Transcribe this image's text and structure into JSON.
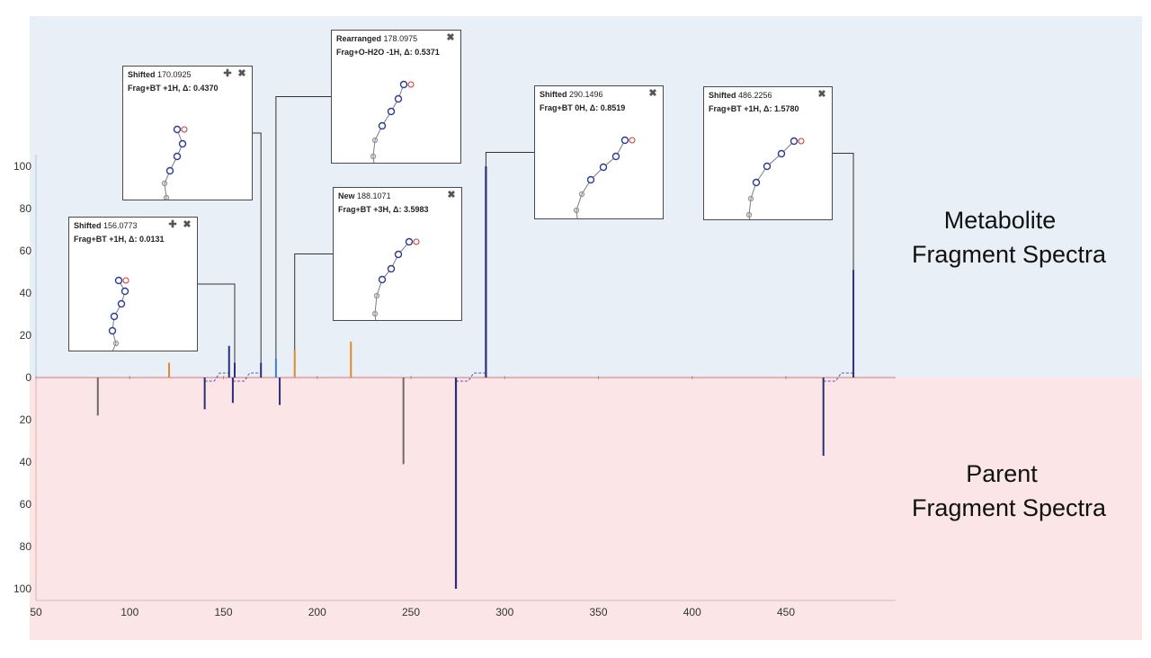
{
  "labels": {
    "metabolite_line1": "Metabolite",
    "metabolite_line2": "Fragment Spectra",
    "parent_line1": "Parent",
    "parent_line2": "Fragment Spectra"
  },
  "colors": {
    "metabolite_bg": "#e9eff7",
    "parent_bg": "#fbe5e6",
    "baseline": "#d9a0a0",
    "navy": "#2b2f7a",
    "blue": "#3b7fc4",
    "orange": "#e08a2a",
    "gray": "#6e6a6a",
    "dashed": "#5a5aa8"
  },
  "callouts": [
    {
      "id": "c1",
      "type": "Shifted",
      "mz": "156.0773",
      "desc": "Frag+BT +1H, Δ: 0.0131",
      "has_plus": true
    },
    {
      "id": "c2",
      "type": "Shifted",
      "mz": "170.0925",
      "desc": "Frag+BT +1H, Δ: 0.4370",
      "has_plus": true
    },
    {
      "id": "c3",
      "type": "Rearranged",
      "mz": "178.0975",
      "desc": "Frag+O-H2O -1H, Δ: 0.5371",
      "has_plus": false
    },
    {
      "id": "c4",
      "type": "New",
      "mz": "188.1071",
      "desc": "Frag+BT +3H, Δ: 3.5983",
      "has_plus": false
    },
    {
      "id": "c5",
      "type": "Shifted",
      "mz": "290.1496",
      "desc": "Frag+BT 0H, Δ: 0.8519",
      "has_plus": false
    },
    {
      "id": "c6",
      "type": "Shifted",
      "mz": "486.2256",
      "desc": "Frag+BT +1H, Δ: 1.5780",
      "has_plus": false
    }
  ],
  "chart_data": {
    "type": "bar",
    "x_ticks": [
      50,
      100,
      150,
      200,
      250,
      300,
      350,
      400,
      450
    ],
    "y_ticks_top": [
      100,
      80,
      60,
      40,
      20,
      0
    ],
    "y_ticks_bottom": [
      20,
      40,
      60,
      80,
      100
    ],
    "xlim": [
      50,
      495
    ],
    "ylim": [
      -100,
      100
    ],
    "grid": false,
    "series": [
      {
        "panel": "metabolite",
        "peaks": [
          {
            "x": 121,
            "y": 7,
            "color": "orange"
          },
          {
            "x": 153,
            "y": 15,
            "color": "navy"
          },
          {
            "x": 156,
            "y": 7,
            "color": "navy"
          },
          {
            "x": 170,
            "y": 7,
            "color": "navy"
          },
          {
            "x": 178,
            "y": 9,
            "color": "blue"
          },
          {
            "x": 188,
            "y": 13,
            "color": "orange"
          },
          {
            "x": 218,
            "y": 17,
            "color": "orange"
          },
          {
            "x": 290,
            "y": 100,
            "color": "navy"
          },
          {
            "x": 486,
            "y": 51,
            "color": "navy"
          }
        ]
      },
      {
        "panel": "parent",
        "peaks": [
          {
            "x": 83,
            "y": -18,
            "color": "gray"
          },
          {
            "x": 140,
            "y": -15,
            "color": "navy"
          },
          {
            "x": 155,
            "y": -12,
            "color": "navy"
          },
          {
            "x": 180,
            "y": -13,
            "color": "navy"
          },
          {
            "x": 246,
            "y": -41,
            "color": "gray"
          },
          {
            "x": 274,
            "y": -100,
            "color": "navy"
          },
          {
            "x": 470,
            "y": -37,
            "color": "navy"
          }
        ]
      }
    ],
    "shifts": [
      {
        "from": 140,
        "to": 153
      },
      {
        "from": 155,
        "to": 170
      },
      {
        "from": 274,
        "to": 290
      },
      {
        "from": 470,
        "to": 486
      }
    ],
    "annotation_links": [
      {
        "callout": "c1",
        "x": 156
      },
      {
        "callout": "c2",
        "x": 170
      },
      {
        "callout": "c3",
        "x": 178
      },
      {
        "callout": "c4",
        "x": 188
      },
      {
        "callout": "c5",
        "x": 290
      },
      {
        "callout": "c6",
        "x": 486
      }
    ]
  }
}
